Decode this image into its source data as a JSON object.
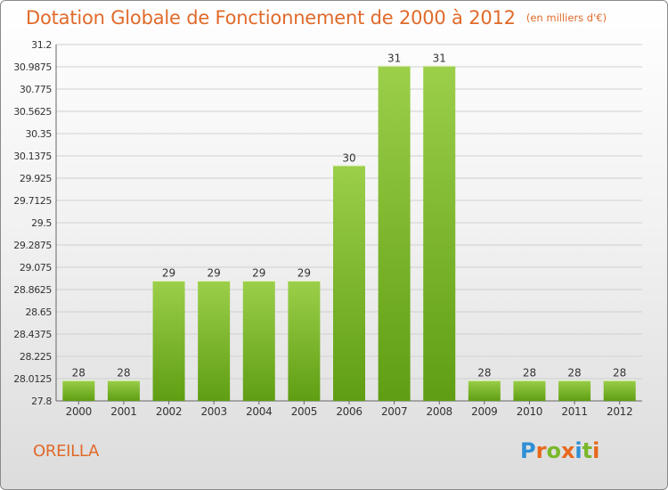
{
  "header": {
    "title": "Dotation Globale de Fonctionnement de 2000 à 2012",
    "unit": "(en milliers d'€)"
  },
  "commune": "OREILLA",
  "logo": {
    "letters": [
      "P",
      "r",
      "o",
      "x",
      "i",
      "t",
      "i"
    ],
    "colors": [
      "#2f8fd6",
      "#e8671c",
      "#79b82a",
      "#e8671c",
      "#2f8fd6",
      "#79b82a",
      "#e8671c"
    ]
  },
  "colors": {
    "bar_top": "#9ccf4a",
    "bar_bottom": "#5f9e13",
    "title": "#e06a2a",
    "grid": "#d0d0d0"
  },
  "chart_data": {
    "type": "bar",
    "categories": [
      "2000",
      "2001",
      "2002",
      "2003",
      "2004",
      "2005",
      "2006",
      "2007",
      "2008",
      "2009",
      "2010",
      "2011",
      "2012"
    ],
    "values": [
      28.0,
      28.0,
      28.95,
      28.95,
      28.95,
      28.95,
      30.05,
      31.0,
      31.0,
      28.0,
      28.0,
      28.0,
      28.0
    ],
    "value_labels": [
      "28",
      "28",
      "29",
      "29",
      "29",
      "29",
      "30",
      "31",
      "31",
      "28",
      "28",
      "28",
      "28"
    ],
    "yticks": [
      "27.8",
      "28.0125",
      "28.225",
      "28.4375",
      "28.65",
      "28.8625",
      "29.075",
      "29.2875",
      "29.5",
      "29.7125",
      "29.925",
      "30.1375",
      "30.35",
      "30.5625",
      "30.775",
      "30.9875",
      "31.2"
    ],
    "ylim": [
      27.8,
      31.2
    ],
    "grid": true,
    "legend": "none"
  }
}
